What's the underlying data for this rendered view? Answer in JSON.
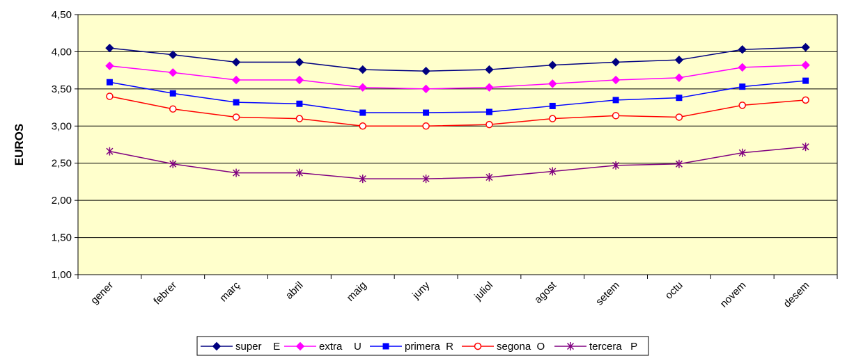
{
  "chart_data": {
    "type": "line",
    "title": "",
    "xlabel": "",
    "ylabel": "EUROS",
    "ylim": [
      1.0,
      4.5
    ],
    "ytick_step": 0.5,
    "ytick_labels": [
      "1,00",
      "1,50",
      "2,00",
      "2,50",
      "3,00",
      "3,50",
      "4,00",
      "4,50"
    ],
    "grid": "horizontal",
    "legend": "bottom",
    "plot_background": "#FFFFCC",
    "categories": [
      "gener",
      "febrer",
      "març",
      "abril",
      "maig",
      "juny",
      "juliol",
      "agost",
      "setem",
      "octu",
      "novem",
      "desem"
    ],
    "series": [
      {
        "name": "super    E",
        "color": "#000080",
        "marker": "diamond",
        "values": [
          4.05,
          3.96,
          3.86,
          3.86,
          3.76,
          3.74,
          3.76,
          3.82,
          3.86,
          3.89,
          4.03,
          4.06
        ]
      },
      {
        "name": "extra    U",
        "color": "#FF00FF",
        "marker": "diamond",
        "values": [
          3.81,
          3.72,
          3.62,
          3.62,
          3.52,
          3.5,
          3.52,
          3.57,
          3.62,
          3.65,
          3.79,
          3.82
        ]
      },
      {
        "name": "primera  R",
        "color": "#0000FF",
        "marker": "square",
        "values": [
          3.59,
          3.44,
          3.32,
          3.3,
          3.18,
          3.18,
          3.19,
          3.27,
          3.35,
          3.38,
          3.53,
          3.61
        ]
      },
      {
        "name": "segona  O",
        "color": "#FF0000",
        "marker": "circle",
        "values": [
          3.4,
          3.23,
          3.12,
          3.1,
          3.0,
          3.0,
          3.02,
          3.1,
          3.14,
          3.12,
          3.28,
          3.35
        ]
      },
      {
        "name": "tercera   P",
        "color": "#800080",
        "marker": "star",
        "values": [
          2.66,
          2.49,
          2.37,
          2.37,
          2.29,
          2.29,
          2.31,
          2.39,
          2.47,
          2.49,
          2.64,
          2.72
        ]
      }
    ]
  }
}
